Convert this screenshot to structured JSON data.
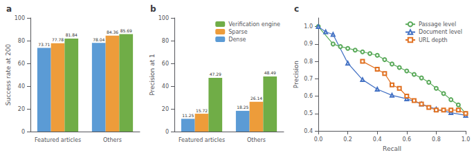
{
  "chart_data": [
    {
      "type": "bar",
      "title": "a",
      "ylabel": "Success rate at 200",
      "categories": [
        "Featured articles",
        "Others"
      ],
      "series": [
        {
          "color": "#5b9bd5",
          "values": [
            73.71,
            78.04
          ]
        },
        {
          "color": "#ed9c3a",
          "values": [
            77.78,
            84.36
          ]
        },
        {
          "color": "#70ad47",
          "values": [
            81.84,
            85.69
          ]
        }
      ],
      "ylim": [
        0,
        100
      ],
      "yticks": [
        0,
        20,
        40,
        60,
        80,
        100
      ],
      "data_labels": true,
      "grid": false
    },
    {
      "type": "bar",
      "title": "b",
      "ylabel": "Precision at 1",
      "categories": [
        "Featured articles",
        "Others"
      ],
      "series": [
        {
          "name": "Dense",
          "color": "#5b9bd5",
          "values": [
            11.25,
            18.25
          ]
        },
        {
          "name": "Sparse",
          "color": "#ed9c3a",
          "values": [
            15.72,
            26.14
          ]
        },
        {
          "name": "Verification engine",
          "color": "#70ad47",
          "values": [
            47.29,
            48.49
          ]
        }
      ],
      "ylim": [
        0,
        100
      ],
      "yticks": [
        0,
        20,
        40,
        60,
        80,
        100
      ],
      "data_labels": true,
      "grid": false,
      "legend": "upper right"
    },
    {
      "type": "line",
      "title": "c",
      "xlabel": "Recall",
      "ylabel": "Precision",
      "series": [
        {
          "name": "Passage level",
          "color": "#5aaa5a",
          "marker": "circle",
          "x": [
            0.0,
            0.1,
            0.15,
            0.2,
            0.25,
            0.3,
            0.35,
            0.4,
            0.45,
            0.5,
            0.55,
            0.6,
            0.65,
            0.7,
            0.75,
            0.8,
            0.85,
            0.9,
            0.95,
            1.0
          ],
          "values": [
            1.0,
            0.9,
            0.885,
            0.875,
            0.865,
            0.855,
            0.845,
            0.835,
            0.81,
            0.785,
            0.765,
            0.745,
            0.725,
            0.705,
            0.68,
            0.645,
            0.615,
            0.58,
            0.55,
            0.5
          ]
        },
        {
          "name": "Document level",
          "color": "#4472c4",
          "marker": "triangle",
          "x": [
            0.0,
            0.05,
            0.1,
            0.2,
            0.3,
            0.4,
            0.5,
            0.6,
            0.7,
            0.8,
            0.9,
            1.0
          ],
          "values": [
            1.0,
            0.97,
            0.955,
            0.79,
            0.695,
            0.64,
            0.605,
            0.585,
            0.555,
            0.525,
            0.505,
            0.49
          ]
        },
        {
          "name": "URL depth",
          "color": "#e07020",
          "marker": "square",
          "x": [
            0.3,
            0.4,
            0.45,
            0.5,
            0.55,
            0.6,
            0.65,
            0.7,
            0.75,
            0.8,
            0.85,
            0.9,
            0.95,
            1.0
          ],
          "values": [
            0.8,
            0.755,
            0.73,
            0.665,
            0.645,
            0.6,
            0.575,
            0.555,
            0.535,
            0.52,
            0.52,
            0.52,
            0.52,
            0.5
          ]
        }
      ],
      "xlim": [
        0,
        1.0
      ],
      "xticks": [
        {
          "value": 0.0,
          "label": "0.0"
        },
        0.2,
        0.4,
        0.6,
        0.8,
        {
          "value": 1.0,
          "label": "1.0"
        }
      ],
      "ylim": [
        0.4,
        1.05
      ],
      "yticks": [
        0.4,
        0.5,
        0.6,
        0.7,
        0.8,
        0.9,
        {
          "value": 1.0,
          "label": "1.0"
        }
      ],
      "grid": false,
      "legend": "upper right"
    }
  ]
}
